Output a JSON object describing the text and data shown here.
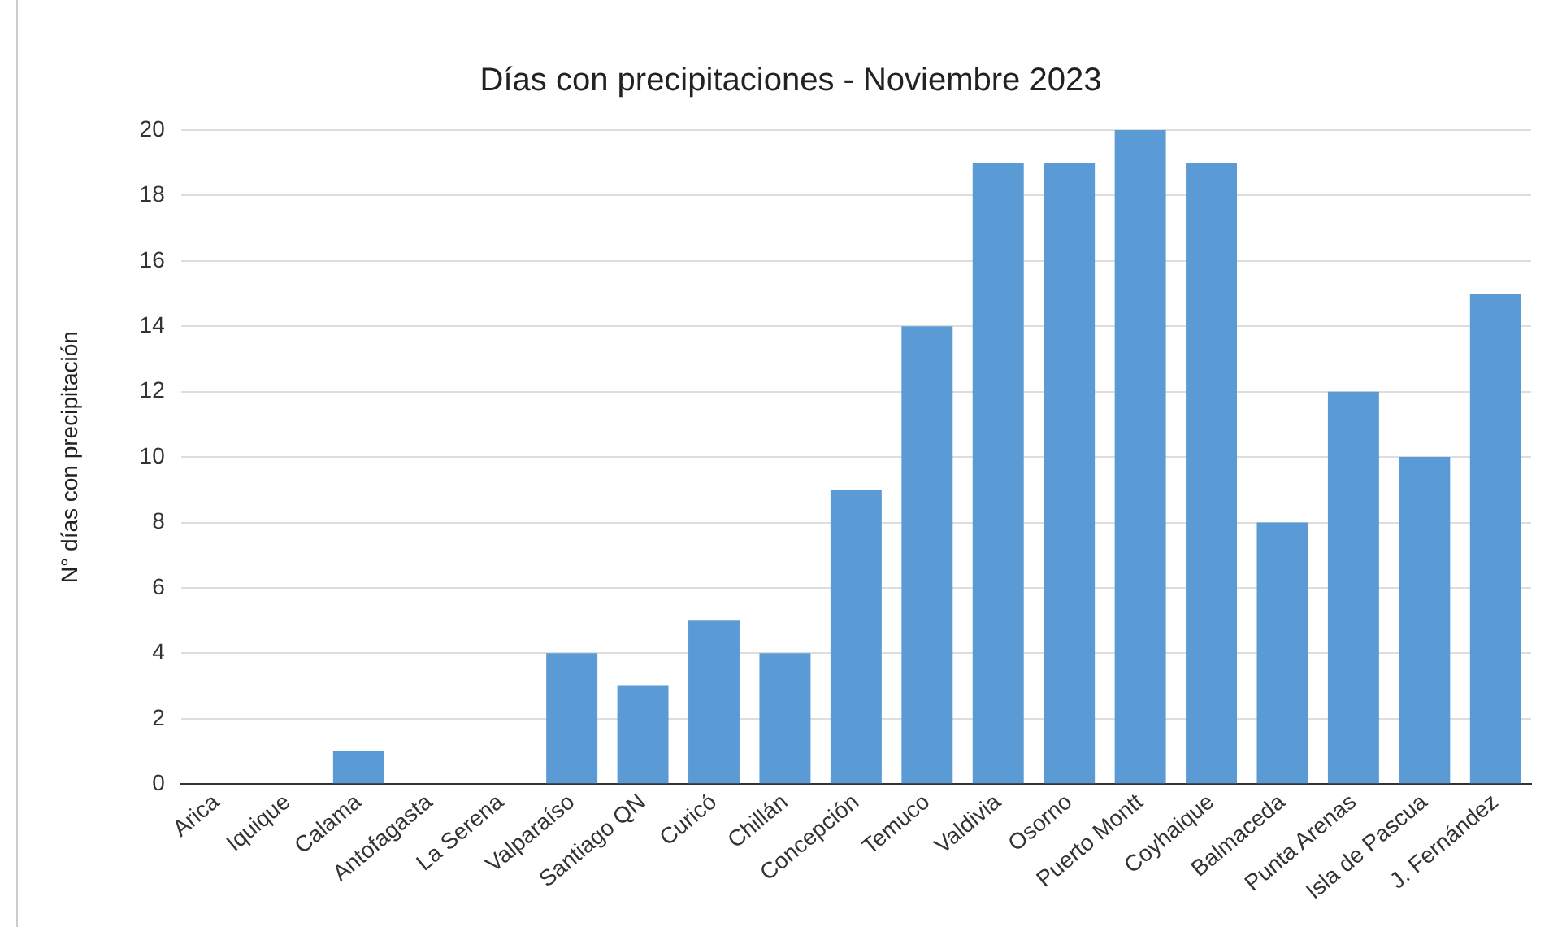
{
  "chart_data": {
    "type": "bar",
    "title": "Días con precipitaciones - Noviembre 2023",
    "ylabel": "N° días con precipitación",
    "categories": [
      "Arica",
      "Iquique",
      "Calama",
      "Antofagasta",
      "La Serena",
      "Valparaíso",
      "Santiago QN",
      "Curicó",
      "Chillán",
      "Concepción",
      "Temuco",
      "Valdivia",
      "Osorno",
      "Puerto Montt",
      "Coyhaique",
      "Balmaceda",
      "Punta Arenas",
      "Isla de Pascua",
      "J. Fernández"
    ],
    "values": [
      0,
      0,
      1,
      0,
      0,
      4,
      3,
      5,
      4,
      9,
      14,
      19,
      19,
      20,
      19,
      8,
      12,
      10,
      15
    ],
    "color": "#5b9bd5",
    "ylim": [
      0,
      20
    ],
    "yticks": [
      0,
      2,
      4,
      6,
      8,
      10,
      12,
      14,
      16,
      18,
      20
    ],
    "grid": "y",
    "legend": false
  }
}
